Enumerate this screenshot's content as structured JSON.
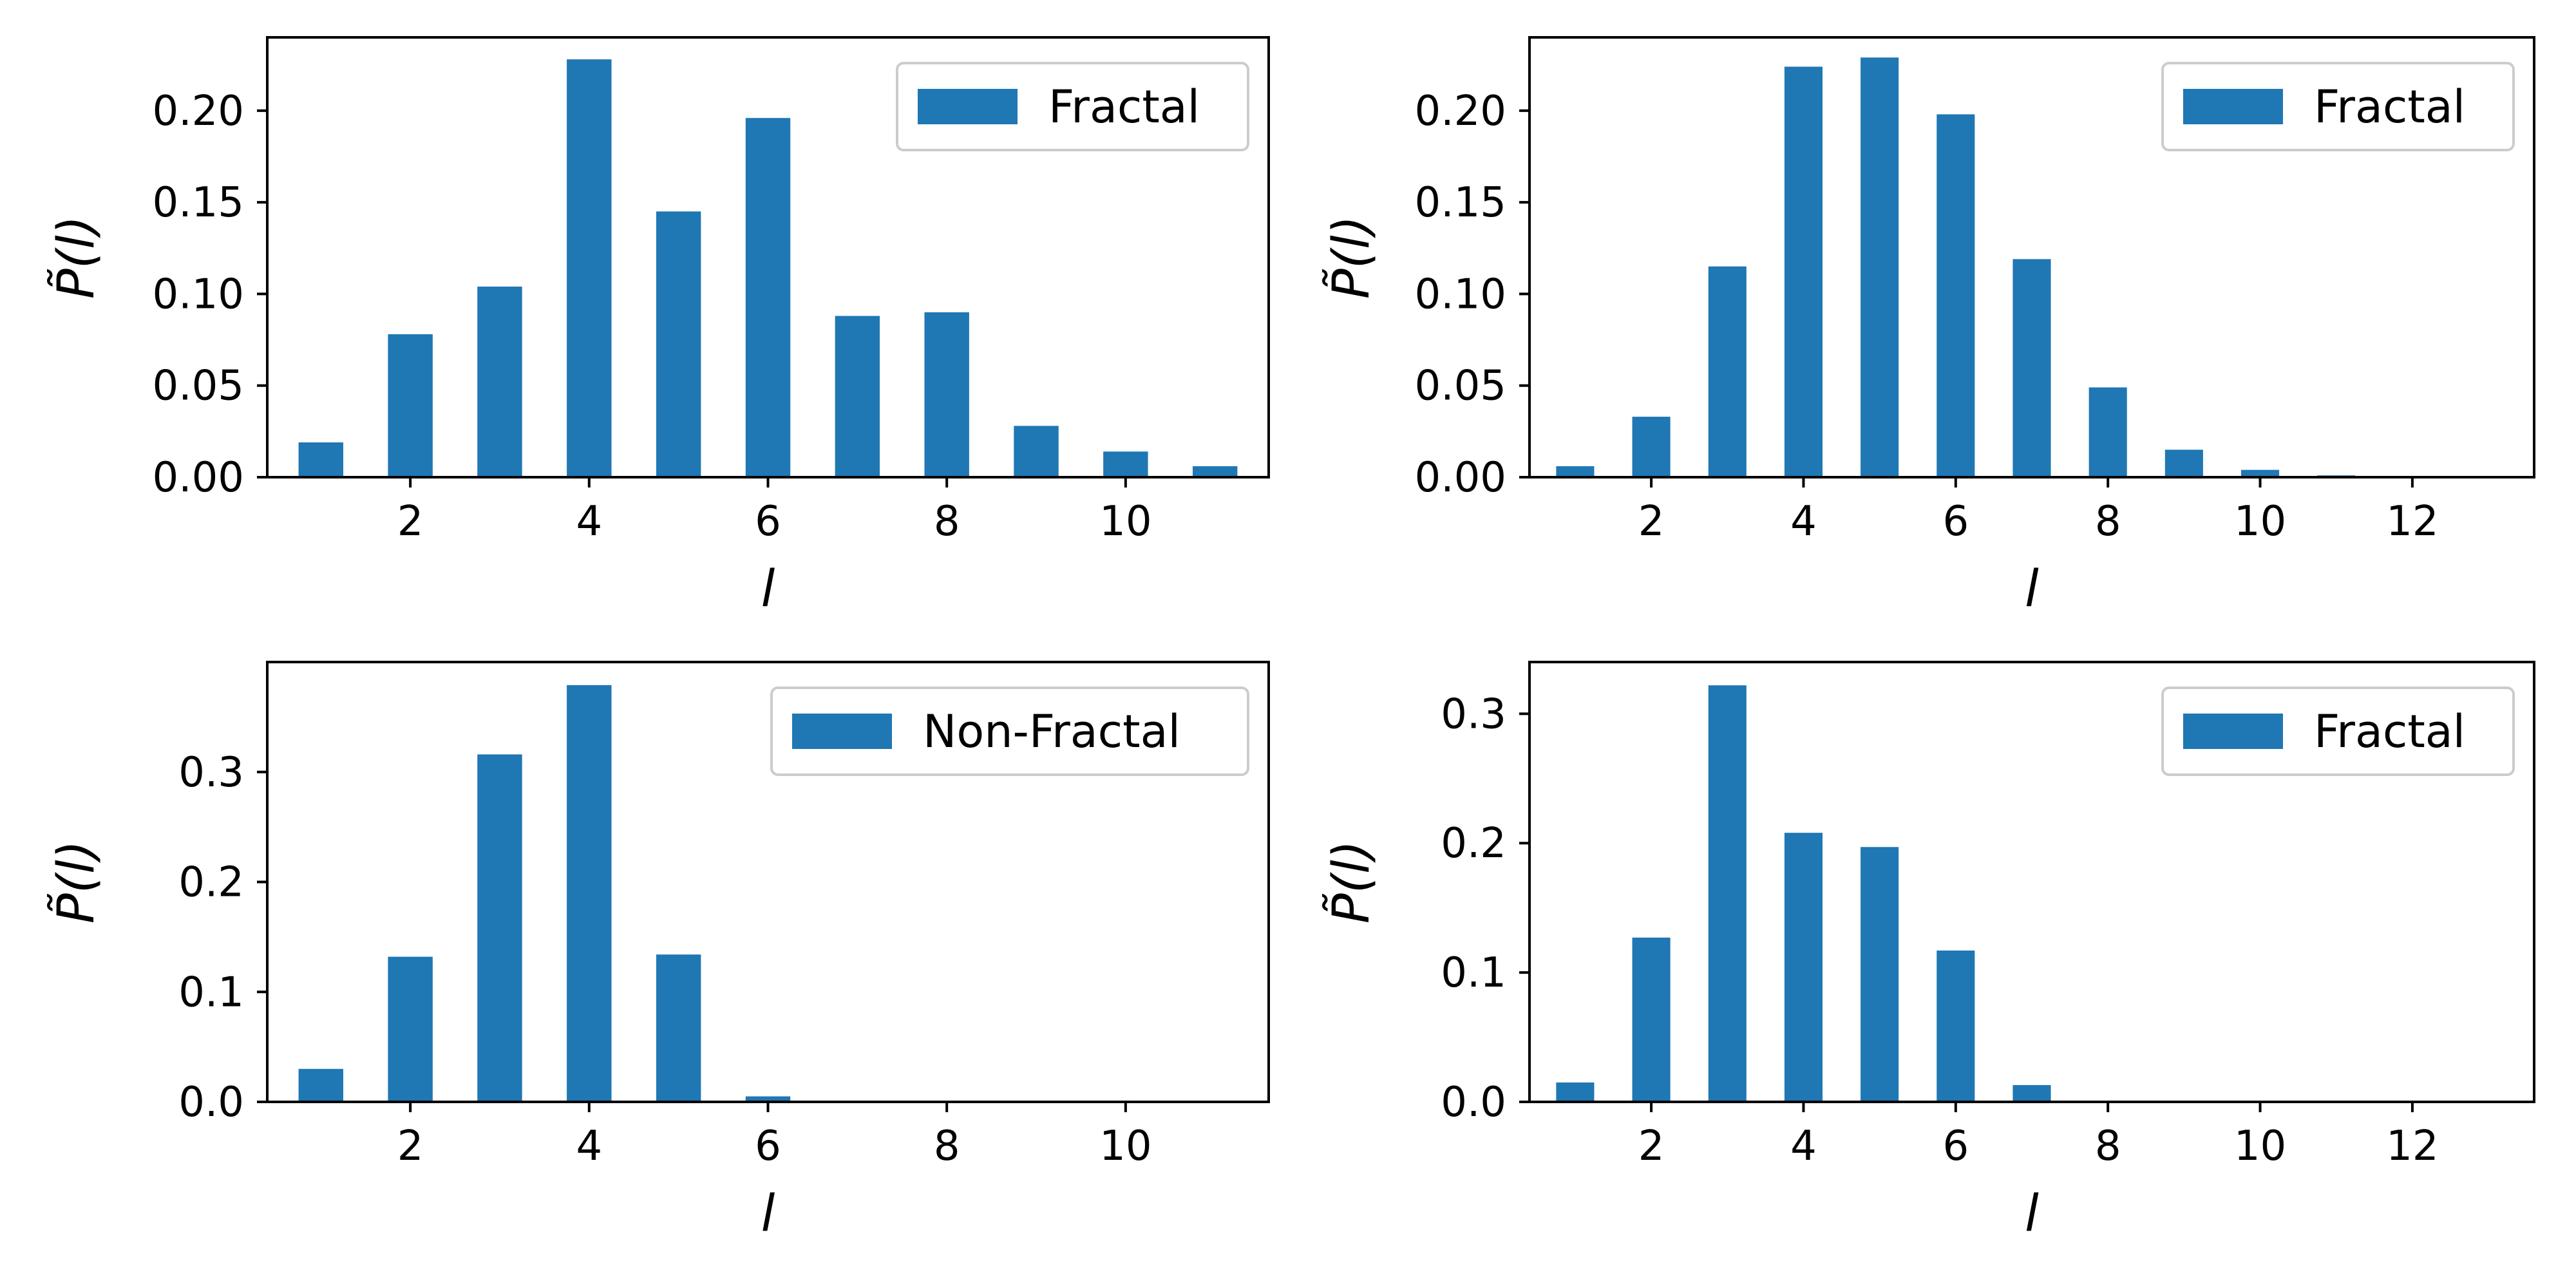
{
  "colors": {
    "bar": "#1f77b4",
    "axis": "#000000",
    "legend_frame": "#cccccc"
  },
  "chart_data": [
    {
      "type": "bar",
      "title": "",
      "xlabel": "l",
      "ylabel": "P̃(l)",
      "legend": "Fractal",
      "legend_position": "top-right",
      "grid": false,
      "x": [
        1,
        2,
        3,
        4,
        5,
        6,
        7,
        8,
        9,
        10,
        11
      ],
      "values": [
        0.019,
        0.078,
        0.104,
        0.228,
        0.145,
        0.196,
        0.088,
        0.09,
        0.028,
        0.014,
        0.006
      ],
      "xlim": [
        0.4,
        11.6
      ],
      "ylim": [
        0,
        0.24
      ],
      "xticks": [
        2,
        4,
        6,
        8,
        10
      ],
      "xtick_labels": [
        "2",
        "4",
        "6",
        "8",
        "10"
      ],
      "yticks": [
        0,
        0.05,
        0.1,
        0.15,
        0.2
      ],
      "ytick_labels": [
        "0.00",
        "0.05",
        "0.10",
        "0.15",
        "0.20"
      ]
    },
    {
      "type": "bar",
      "title": "",
      "xlabel": "l",
      "ylabel": "P̃(l)",
      "legend": "Fractal",
      "legend_position": "top-right",
      "grid": false,
      "x": [
        1,
        2,
        3,
        4,
        5,
        6,
        7,
        8,
        9,
        10,
        11,
        12,
        13
      ],
      "values": [
        0.006,
        0.033,
        0.115,
        0.224,
        0.229,
        0.198,
        0.119,
        0.049,
        0.015,
        0.004,
        0.001,
        0.0,
        0.0
      ],
      "xlim": [
        0.4,
        13.6
      ],
      "ylim": [
        0,
        0.24
      ],
      "xticks": [
        2,
        4,
        6,
        8,
        10,
        12
      ],
      "xtick_labels": [
        "2",
        "4",
        "6",
        "8",
        "10",
        "12"
      ],
      "yticks": [
        0,
        0.05,
        0.1,
        0.15,
        0.2
      ],
      "ytick_labels": [
        "0.00",
        "0.05",
        "0.10",
        "0.15",
        "0.20"
      ]
    },
    {
      "type": "bar",
      "title": "",
      "xlabel": "l",
      "ylabel": "P̃(l)",
      "legend": "Non-Fractal",
      "legend_position": "top-right",
      "grid": false,
      "x": [
        1,
        2,
        3,
        4,
        5,
        6,
        7,
        8,
        9,
        10,
        11
      ],
      "values": [
        0.03,
        0.132,
        0.316,
        0.379,
        0.134,
        0.005,
        0.0,
        0.0,
        0.0,
        0.0,
        0.0
      ],
      "xlim": [
        0.4,
        11.6
      ],
      "ylim": [
        0,
        0.4
      ],
      "xticks": [
        2,
        4,
        6,
        8,
        10
      ],
      "xtick_labels": [
        "2",
        "4",
        "6",
        "8",
        "10"
      ],
      "yticks": [
        0,
        0.1,
        0.2,
        0.3
      ],
      "ytick_labels": [
        "0.0",
        "0.1",
        "0.2",
        "0.3"
      ]
    },
    {
      "type": "bar",
      "title": "",
      "xlabel": "l",
      "ylabel": "P̃(l)",
      "legend": "Fractal",
      "legend_position": "top-right",
      "grid": false,
      "x": [
        1,
        2,
        3,
        4,
        5,
        6,
        7,
        8,
        9,
        10,
        11,
        12,
        13
      ],
      "values": [
        0.015,
        0.127,
        0.322,
        0.208,
        0.197,
        0.117,
        0.013,
        0.0,
        0.0,
        0.0,
        0.0,
        0.0,
        0.0
      ],
      "xlim": [
        0.4,
        13.6
      ],
      "ylim": [
        0,
        0.34
      ],
      "xticks": [
        2,
        4,
        6,
        8,
        10,
        12
      ],
      "xtick_labels": [
        "2",
        "4",
        "6",
        "8",
        "10",
        "12"
      ],
      "yticks": [
        0,
        0.1,
        0.2,
        0.3
      ],
      "ytick_labels": [
        "0.0",
        "0.1",
        "0.2",
        "0.3"
      ]
    }
  ]
}
